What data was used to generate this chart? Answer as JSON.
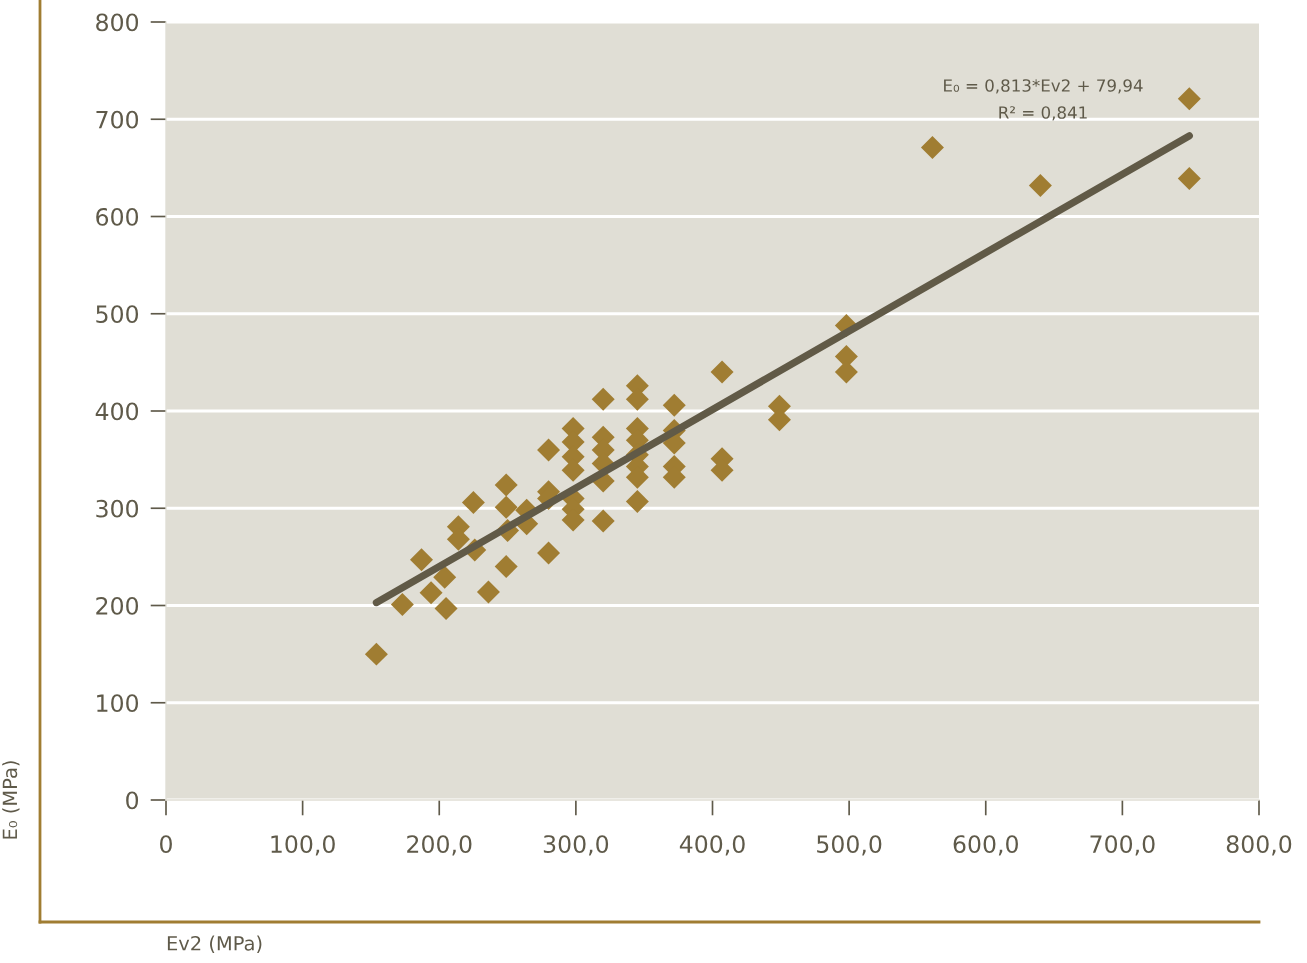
{
  "chart_data": {
    "type": "scatter",
    "xlabel": "Ev2 (MPa)",
    "ylabel": "E₀ (MPa)",
    "annotations": [
      "E₀ = 0,813*Ev2 + 79,94",
      "R² = 0,841"
    ],
    "xlim": [
      0,
      800
    ],
    "ylim": [
      0,
      800
    ],
    "xticks": [
      0,
      {
        "value": 100,
        "label": "100,0"
      },
      {
        "value": 200,
        "label": "200,0"
      },
      {
        "value": 300,
        "label": "300,0"
      },
      {
        "value": 400,
        "label": "400,0"
      },
      {
        "value": 500,
        "label": "500,0"
      },
      {
        "value": 600,
        "label": "600,0"
      },
      {
        "value": 700,
        "label": "700,0"
      },
      {
        "value": 800,
        "label": "800,0"
      }
    ],
    "yticks": [
      0,
      100,
      200,
      300,
      400,
      500,
      600,
      700,
      800
    ],
    "grid": "y",
    "series": [
      {
        "marker": "diamond",
        "color": "#a07d32",
        "x": [
          154,
          173,
          187,
          194,
          204,
          205,
          214,
          214,
          225,
          226,
          236,
          249,
          249,
          250,
          249,
          264,
          264,
          280,
          280,
          280,
          280,
          298,
          298,
          298,
          298,
          298,
          298,
          298,
          320,
          320,
          320,
          320,
          320,
          320,
          345,
          345,
          345,
          345,
          345,
          345,
          345,
          345,
          372,
          372,
          372,
          372,
          372,
          407,
          407,
          407,
          449,
          449,
          498,
          498,
          498,
          561,
          640,
          749,
          749
        ],
        "values": [
          150,
          201,
          247,
          213,
          229,
          197,
          281,
          268,
          306,
          257,
          214,
          324,
          301,
          277,
          240,
          298,
          284,
          360,
          317,
          310,
          254,
          382,
          368,
          353,
          339,
          310,
          299,
          288,
          412,
          373,
          360,
          346,
          328,
          287,
          426,
          412,
          382,
          370,
          355,
          343,
          332,
          307,
          406,
          380,
          367,
          343,
          332,
          440,
          351,
          339,
          405,
          391,
          488,
          456,
          440,
          671,
          632,
          721,
          639
        ]
      },
      {
        "type": "line",
        "marker": "none",
        "line_style": "solid",
        "color": "#615a47",
        "x": [
          154,
          749
        ],
        "values": [
          203,
          683
        ]
      }
    ]
  }
}
